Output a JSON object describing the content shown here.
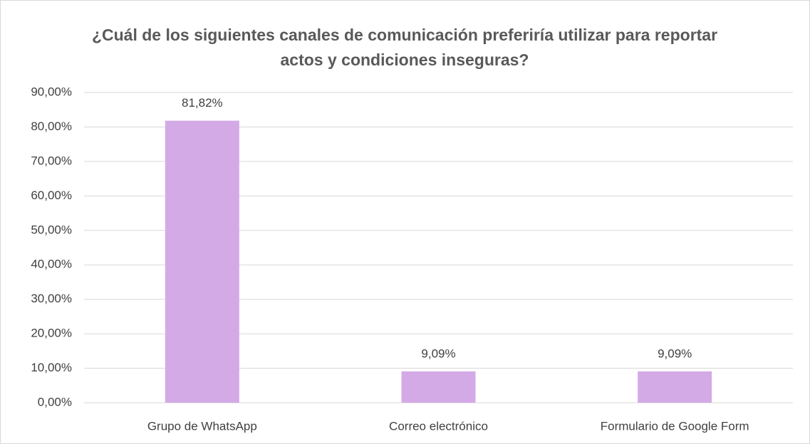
{
  "chart_data": {
    "type": "bar",
    "title": "¿Cuál de los siguientes canales de comunicación preferiría utilizar para reportar actos y condiciones inseguras?",
    "categories": [
      "Grupo de WhatsApp",
      "Correo electrónico",
      "Formulario de Google Form"
    ],
    "values": [
      81.82,
      9.09,
      9.09
    ],
    "value_labels": [
      "81,82%",
      "9,09%",
      "9,09%"
    ],
    "color": "#d4aae6",
    "ylim": [
      0,
      90
    ],
    "yticks": [
      {
        "value": 0,
        "label": "0,00%"
      },
      {
        "value": 10,
        "label": "10,00%"
      },
      {
        "value": 20,
        "label": "20,00%"
      },
      {
        "value": 30,
        "label": "30,00%"
      },
      {
        "value": 40,
        "label": "40,00%"
      },
      {
        "value": 50,
        "label": "50,00%"
      },
      {
        "value": 60,
        "label": "60,00%"
      },
      {
        "value": 70,
        "label": "70,00%"
      },
      {
        "value": 80,
        "label": "80,00%"
      },
      {
        "value": 90,
        "label": "90,00%"
      }
    ],
    "grid": true
  }
}
